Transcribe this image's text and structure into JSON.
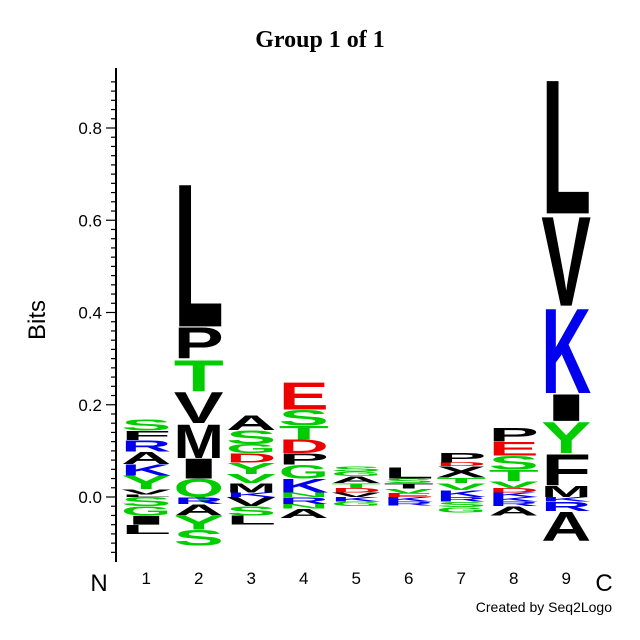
{
  "chart_data": {
    "type": "sequence-logo",
    "title": "Group 1 of 1",
    "ylabel": "Bits",
    "ylim": [
      -0.14,
      0.93
    ],
    "yticks": [
      0.0,
      0.2,
      0.4,
      0.6,
      0.8
    ],
    "ytick_labels": [
      "0.0",
      "0.2",
      "0.4",
      "0.6",
      "0.8"
    ],
    "positions": [
      "1",
      "2",
      "3",
      "4",
      "5",
      "6",
      "7",
      "8",
      "9"
    ],
    "n_label": "N",
    "c_label": "C",
    "credit": "Created by Seq2Logo",
    "colors": {
      "black": "#000000",
      "green": "#00cc00",
      "blue": "#0000ee",
      "red": "#ee0000"
    },
    "stacks": [
      {
        "positive": [
          {
            "letter": "L",
            "height": 0.005,
            "color": "black"
          },
          {
            "letter": "V",
            "height": 0.012,
            "color": "black"
          },
          {
            "letter": "Y",
            "height": 0.03,
            "color": "green"
          },
          {
            "letter": "K",
            "height": 0.025,
            "color": "blue"
          },
          {
            "letter": "A",
            "height": 0.027,
            "color": "black"
          },
          {
            "letter": "R",
            "height": 0.025,
            "color": "blue"
          },
          {
            "letter": "F",
            "height": 0.02,
            "color": "black"
          },
          {
            "letter": "S",
            "height": 0.025,
            "color": "green"
          }
        ],
        "negative": [
          {
            "letter": "S",
            "height": 0.02,
            "color": "green"
          },
          {
            "letter": "G",
            "height": 0.02,
            "color": "green"
          },
          {
            "letter": "I",
            "height": 0.02,
            "color": "black"
          },
          {
            "letter": "L",
            "height": 0.02,
            "color": "black"
          }
        ]
      },
      {
        "positive": [
          {
            "letter": "Q",
            "height": 0.04,
            "color": "green"
          },
          {
            "letter": "I",
            "height": 0.045,
            "color": "black"
          },
          {
            "letter": "M",
            "height": 0.075,
            "color": "black"
          },
          {
            "letter": "V",
            "height": 0.07,
            "color": "black"
          },
          {
            "letter": "T",
            "height": 0.07,
            "color": "green"
          },
          {
            "letter": "P",
            "height": 0.07,
            "color": "black"
          },
          {
            "letter": "L",
            "height": 0.32,
            "color": "black"
          }
        ],
        "negative": [
          {
            "letter": "R",
            "height": 0.015,
            "color": "blue"
          },
          {
            "letter": "A",
            "height": 0.025,
            "color": "black"
          },
          {
            "letter": "Y",
            "height": 0.03,
            "color": "green"
          },
          {
            "letter": "S",
            "height": 0.035,
            "color": "green"
          }
        ]
      },
      {
        "positive": [
          {
            "letter": "K",
            "height": 0.01,
            "color": "blue"
          },
          {
            "letter": "M",
            "height": 0.02,
            "color": "black"
          },
          {
            "letter": "V",
            "height": 0.02,
            "color": "green"
          },
          {
            "letter": "Y",
            "height": 0.025,
            "color": "green"
          },
          {
            "letter": "D",
            "height": 0.02,
            "color": "red"
          },
          {
            "letter": "G",
            "height": 0.02,
            "color": "green"
          },
          {
            "letter": "S",
            "height": 0.03,
            "color": "green"
          },
          {
            "letter": "A",
            "height": 0.033,
            "color": "black"
          }
        ],
        "negative": [
          {
            "letter": "V",
            "height": 0.02,
            "color": "black"
          },
          {
            "letter": "S",
            "height": 0.02,
            "color": "green"
          },
          {
            "letter": "L",
            "height": 0.02,
            "color": "black"
          }
        ]
      },
      {
        "positive": [
          {
            "letter": "N",
            "height": 0.01,
            "color": "green"
          },
          {
            "letter": "K",
            "height": 0.03,
            "color": "blue"
          },
          {
            "letter": "G",
            "height": 0.03,
            "color": "green"
          },
          {
            "letter": "P",
            "height": 0.025,
            "color": "black"
          },
          {
            "letter": "D",
            "height": 0.03,
            "color": "red"
          },
          {
            "letter": "T",
            "height": 0.03,
            "color": "green"
          },
          {
            "letter": "S",
            "height": 0.035,
            "color": "green"
          },
          {
            "letter": "E",
            "height": 0.06,
            "color": "red"
          }
        ],
        "negative": [
          {
            "letter": "R",
            "height": 0.015,
            "color": "blue"
          },
          {
            "letter": "N",
            "height": 0.01,
            "color": "green"
          },
          {
            "letter": "A",
            "height": 0.02,
            "color": "black"
          }
        ]
      },
      {
        "positive": [
          {
            "letter": "V",
            "height": 0.01,
            "color": "black"
          },
          {
            "letter": "D",
            "height": 0.01,
            "color": "red"
          },
          {
            "letter": "T",
            "height": 0.01,
            "color": "green"
          },
          {
            "letter": "A",
            "height": 0.015,
            "color": "black"
          },
          {
            "letter": "G",
            "height": 0.01,
            "color": "green"
          },
          {
            "letter": "S",
            "height": 0.012,
            "color": "green"
          }
        ],
        "negative": [
          {
            "letter": "K",
            "height": 0.01,
            "color": "blue"
          },
          {
            "letter": "G",
            "height": 0.01,
            "color": "green"
          }
        ]
      },
      {
        "positive": [
          {
            "letter": "E",
            "height": 0.008,
            "color": "red"
          },
          {
            "letter": "V",
            "height": 0.01,
            "color": "green"
          },
          {
            "letter": "T",
            "height": 0.012,
            "color": "black"
          },
          {
            "letter": "S",
            "height": 0.01,
            "color": "green"
          },
          {
            "letter": "L",
            "height": 0.025,
            "color": "black"
          }
        ],
        "negative": [
          {
            "letter": "K",
            "height": 0.01,
            "color": "blue"
          },
          {
            "letter": "R",
            "height": 0.008,
            "color": "blue"
          }
        ]
      },
      {
        "positive": [
          {
            "letter": "K",
            "height": 0.015,
            "color": "blue"
          },
          {
            "letter": "V",
            "height": 0.015,
            "color": "green"
          },
          {
            "letter": "T",
            "height": 0.012,
            "color": "green"
          },
          {
            "letter": "X",
            "height": 0.025,
            "color": "black"
          },
          {
            "letter": "D",
            "height": 0.008,
            "color": "red"
          },
          {
            "letter": "P",
            "height": 0.022,
            "color": "black"
          }
        ],
        "negative": [
          {
            "letter": "R",
            "height": 0.01,
            "color": "blue"
          },
          {
            "letter": "S",
            "height": 0.012,
            "color": "green"
          },
          {
            "letter": "G",
            "height": 0.012,
            "color": "green"
          }
        ]
      },
      {
        "positive": [
          {
            "letter": "K",
            "height": 0.01,
            "color": "blue"
          },
          {
            "letter": "D",
            "height": 0.01,
            "color": "red"
          },
          {
            "letter": "V",
            "height": 0.015,
            "color": "green"
          },
          {
            "letter": "T",
            "height": 0.025,
            "color": "green"
          },
          {
            "letter": "S",
            "height": 0.03,
            "color": "green"
          },
          {
            "letter": "E",
            "height": 0.03,
            "color": "red"
          },
          {
            "letter": "P",
            "height": 0.03,
            "color": "black"
          }
        ],
        "negative": [
          {
            "letter": "K",
            "height": 0.01,
            "color": "blue"
          },
          {
            "letter": "R",
            "height": 0.01,
            "color": "blue"
          },
          {
            "letter": "A",
            "height": 0.02,
            "color": "black"
          }
        ]
      },
      {
        "positive": [
          {
            "letter": "M",
            "height": 0.025,
            "color": "black"
          },
          {
            "letter": "F",
            "height": 0.07,
            "color": "black"
          },
          {
            "letter": "Y",
            "height": 0.07,
            "color": "green"
          },
          {
            "letter": "I",
            "height": 0.06,
            "color": "black"
          },
          {
            "letter": "K",
            "height": 0.19,
            "color": "blue"
          },
          {
            "letter": "V",
            "height": 0.2,
            "color": "black"
          },
          {
            "letter": "L",
            "height": 0.3,
            "color": "black"
          }
        ],
        "negative": [
          {
            "letter": "K",
            "height": 0.01,
            "color": "blue"
          },
          {
            "letter": "R",
            "height": 0.02,
            "color": "blue"
          },
          {
            "letter": "A",
            "height": 0.065,
            "color": "black"
          }
        ]
      }
    ]
  }
}
